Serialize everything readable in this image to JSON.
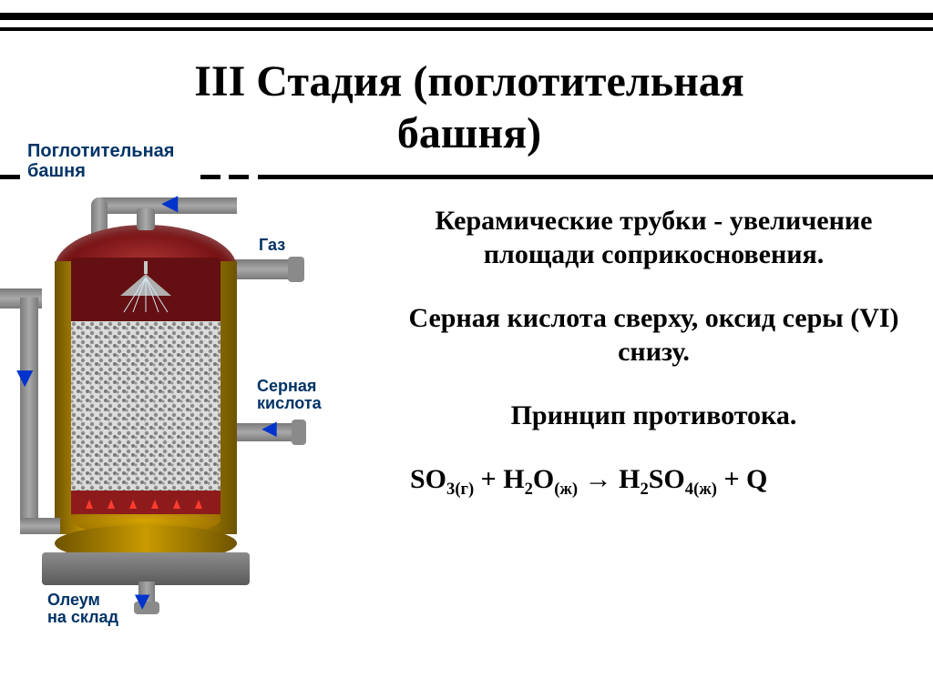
{
  "title_line1": "III Стадия (поглотительная",
  "title_line2": "башня)",
  "diagram": {
    "caption": "Поглотительная\nбашня",
    "label_gas": "Газ",
    "label_acid": "Серная\nкислота",
    "label_oleum": "Олеум\nна склад",
    "colors": {
      "pipe": "#8a8a8a",
      "pipe_highlight": "#b5b5b5",
      "shell": "#c99a00",
      "shell_dark": "#8a6a00",
      "top_dome": "#7a1416",
      "liquid": "#8e1b1b",
      "packing_bg": "#d8d8d8",
      "packing_dots": "#6a6a6a",
      "base": "#6f6f6f",
      "arrow": "#0033cc",
      "label": "#003366"
    }
  },
  "body": {
    "p1": "Керамические трубки - увеличение площади соприкосновения.",
    "p2": "Серная кислота сверху, оксид серы (VI) снизу.",
    "p3": "Принцип противотока.",
    "equation_html": "SO<sub>3(г)</sub> + H<sub>2</sub>O<sub>(ж)</sub> &rarr; H<sub>2</sub>SO<sub>4(ж)</sub> + Q"
  },
  "style": {
    "title_fontsize": 48,
    "body_fontsize": 30,
    "title_color": "#000000",
    "body_color": "#000000",
    "rule_color": "#000000",
    "background": "#ffffff"
  }
}
